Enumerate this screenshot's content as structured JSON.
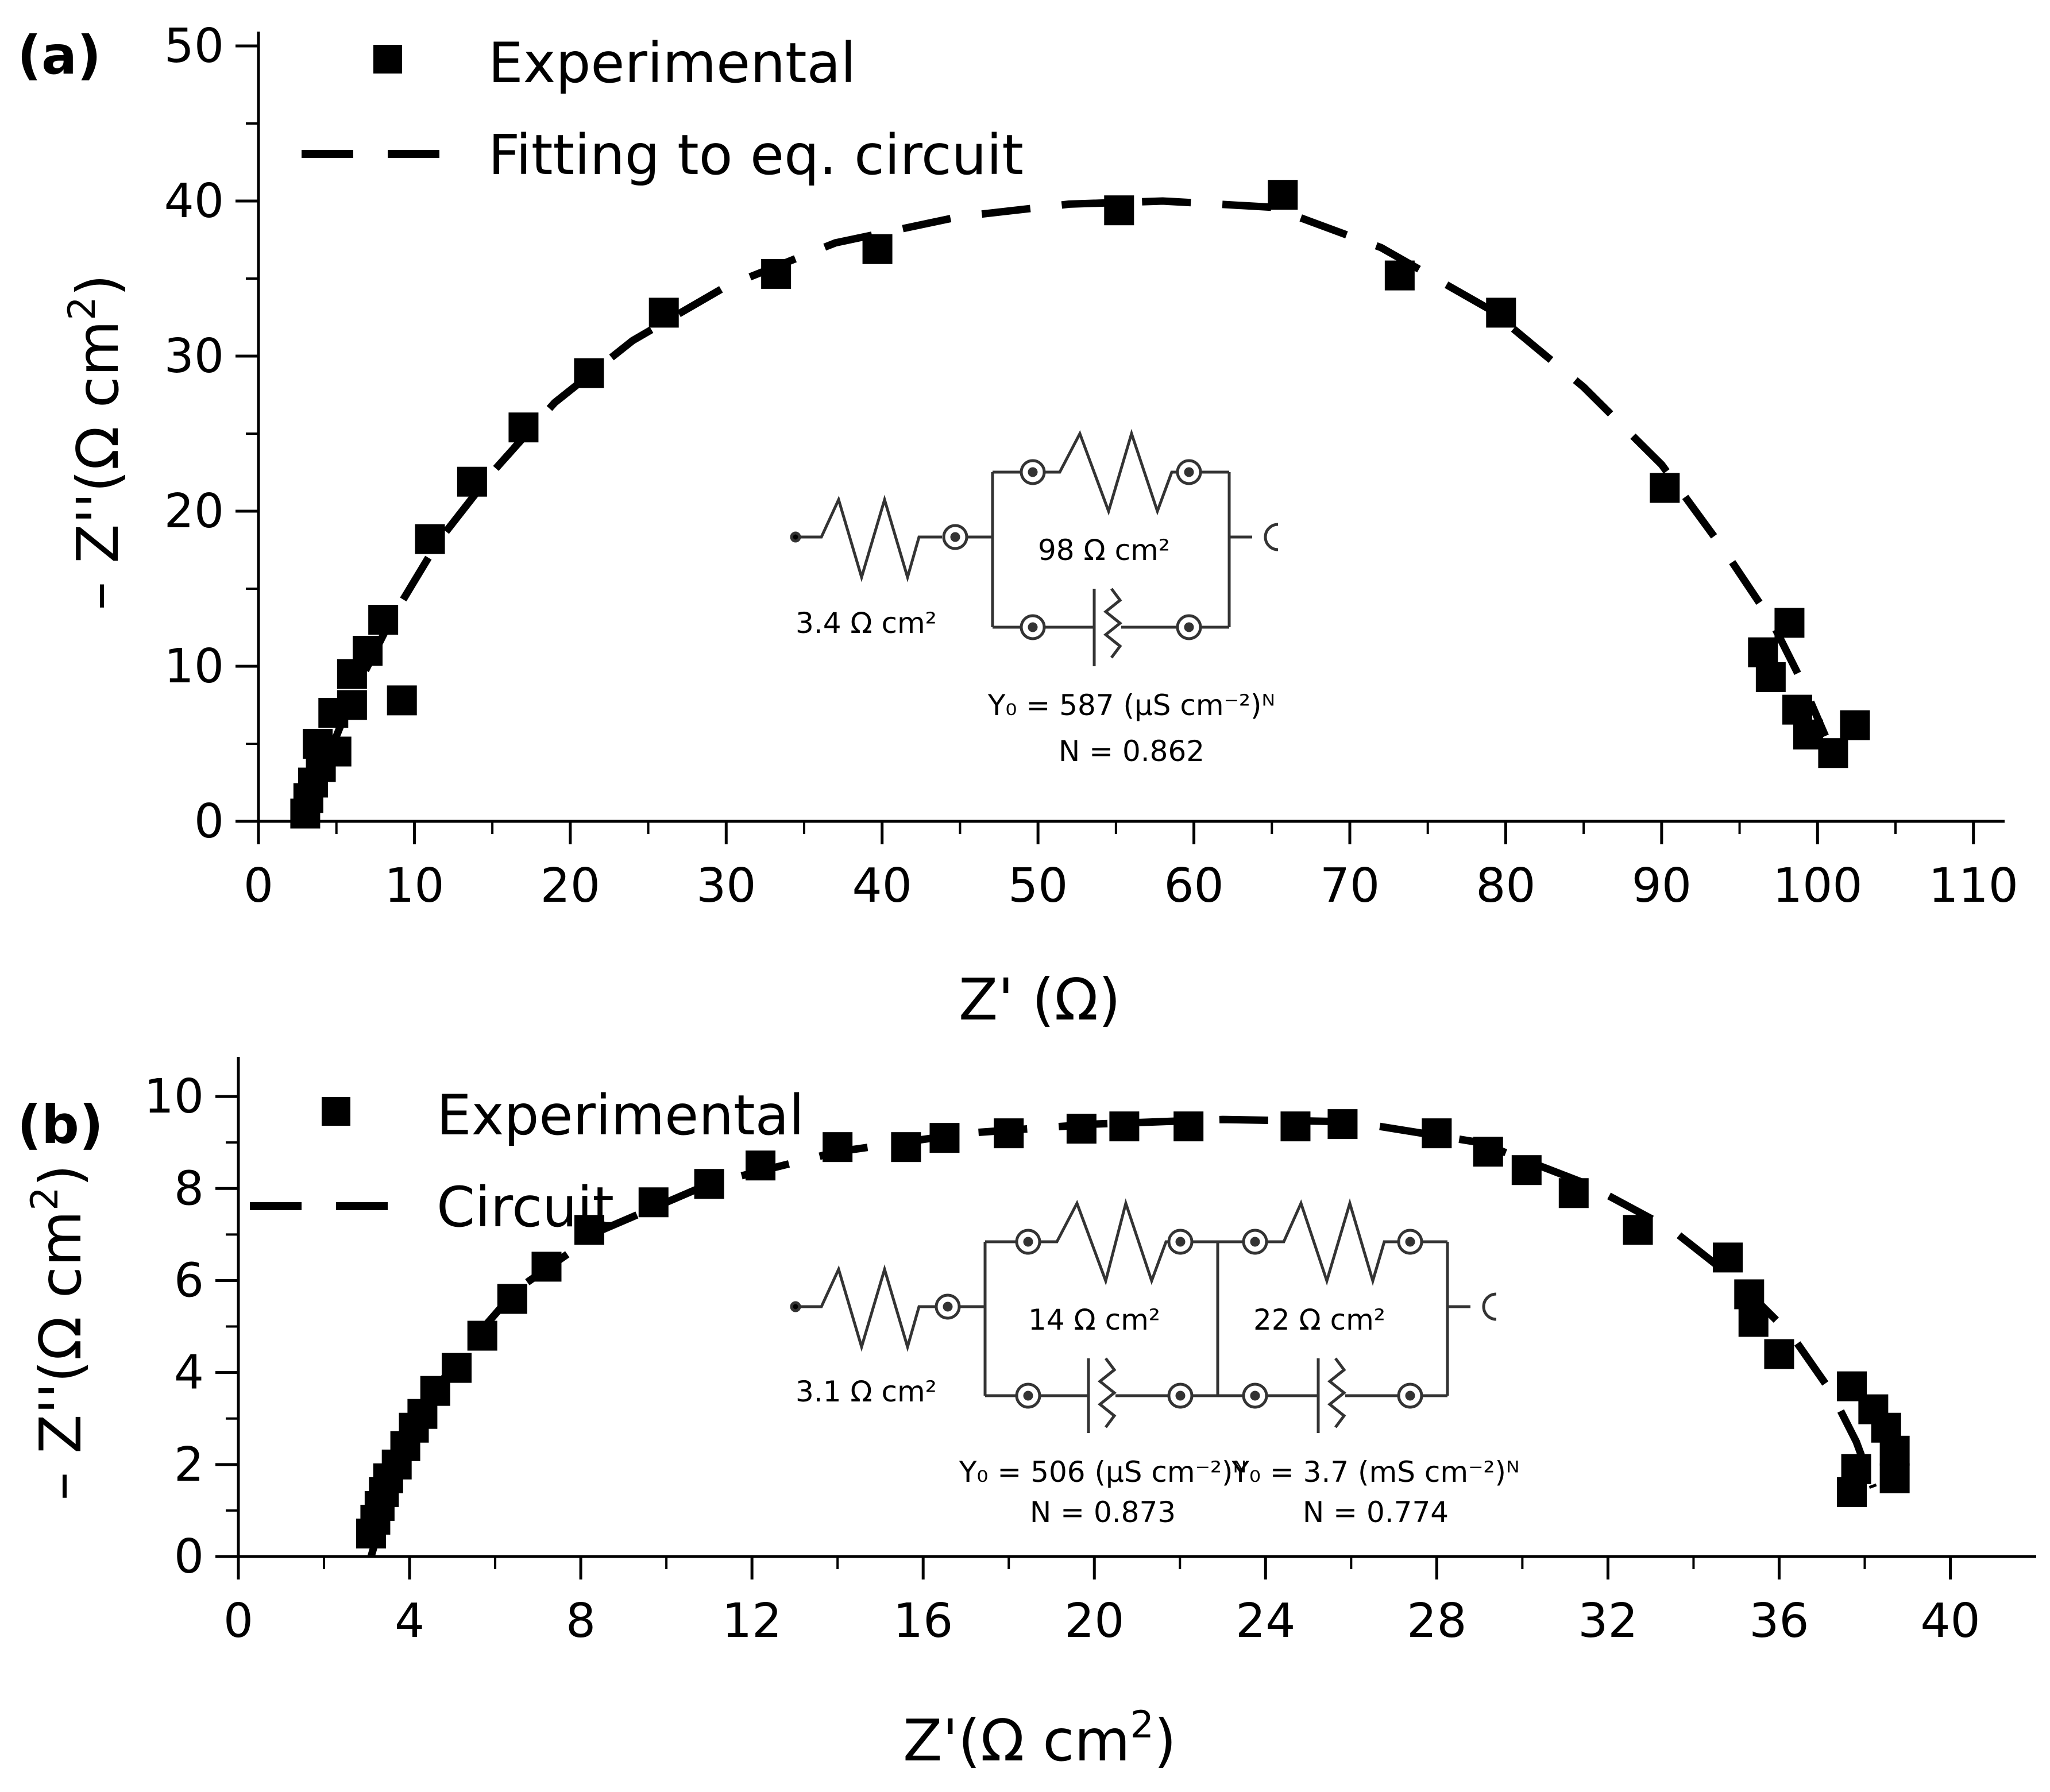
{
  "colors": {
    "background": "#ffffff",
    "ink": "#000000"
  },
  "chart_data": [
    {
      "panel_label": "(a)",
      "type": "scatter",
      "xlim": [
        0,
        112
      ],
      "ylim": [
        0,
        50
      ],
      "xticks": [
        0,
        10,
        20,
        30,
        40,
        50,
        60,
        70,
        80,
        90,
        100,
        110
      ],
      "yticks": [
        0,
        10,
        20,
        30,
        40,
        50
      ],
      "x_minor": 5,
      "y_minor": 5,
      "xlabel": {
        "main": "Z' (",
        "omega": "Ω",
        "end": ")"
      },
      "ylabel": {
        "main": "– Z''(",
        "omega": "Ω",
        "unit": " cm",
        "sup": "2",
        "end": ")"
      },
      "legend": [
        {
          "label": "Experimental",
          "marker": "square"
        },
        {
          "label": "Fitting to eq. circuit",
          "marker": "dashed-line"
        }
      ],
      "series": [
        {
          "name": "Experimental",
          "points": [
            [
              3.0,
              0.5
            ],
            [
              3.2,
              1.5
            ],
            [
              3.5,
              2.5
            ],
            [
              4.0,
              3.5
            ],
            [
              3.8,
              5.0
            ],
            [
              5.0,
              4.5
            ],
            [
              4.8,
              7.0
            ],
            [
              6.0,
              7.5
            ],
            [
              6.0,
              9.5
            ],
            [
              7.0,
              11.0
            ],
            [
              8.0,
              13.0
            ],
            [
              9.2,
              7.8
            ],
            [
              11.0,
              18.2
            ],
            [
              13.7,
              21.9
            ],
            [
              17.0,
              25.4
            ],
            [
              21.2,
              28.9
            ],
            [
              26.0,
              32.8
            ],
            [
              33.2,
              35.3
            ],
            [
              39.7,
              36.9
            ],
            [
              55.2,
              39.4
            ],
            [
              65.7,
              40.4
            ],
            [
              73.2,
              35.2
            ],
            [
              79.7,
              32.8
            ],
            [
              90.2,
              21.5
            ],
            [
              96.5,
              10.9
            ],
            [
              97.0,
              9.3
            ],
            [
              98.2,
              12.8
            ],
            [
              98.7,
              7.2
            ],
            [
              99.4,
              5.6
            ],
            [
              101.0,
              4.4
            ],
            [
              102.4,
              6.2
            ]
          ]
        },
        {
          "name": "Fitting to eq. circuit",
          "style": "dashed",
          "points": [
            [
              3.4,
              0.0
            ],
            [
              4.4,
              4.0
            ],
            [
              6.0,
              8.0
            ],
            [
              8.5,
              13.0
            ],
            [
              11.5,
              18.0
            ],
            [
              15.0,
              22.5
            ],
            [
              19.0,
              27.0
            ],
            [
              24.0,
              31.0
            ],
            [
              30.0,
              34.5
            ],
            [
              37.0,
              37.3
            ],
            [
              45.0,
              39.0
            ],
            [
              52.0,
              39.8
            ],
            [
              58.0,
              40.0
            ],
            [
              65.0,
              39.6
            ],
            [
              72.0,
              37.0
            ],
            [
              79.0,
              33.0
            ],
            [
              85.0,
              28.0
            ],
            [
              90.0,
              23.0
            ],
            [
              94.0,
              17.5
            ],
            [
              97.0,
              13.0
            ],
            [
              99.0,
              9.0
            ],
            [
              100.5,
              5.5
            ]
          ]
        }
      ],
      "circuit": {
        "r_series": "3.4 Ω cm²",
        "r_parallel": "98 Ω cm²",
        "cpe_y0": "Y₀ = 587 (μS cm⁻²)ᴺ",
        "cpe_n": "N = 0.862"
      }
    },
    {
      "panel_label": "(b)",
      "type": "scatter",
      "xlim": [
        0,
        41
      ],
      "ylim": [
        0,
        10.8
      ],
      "xticks": [
        0,
        4,
        8,
        12,
        16,
        20,
        24,
        28,
        32,
        36,
        40
      ],
      "yticks": [
        0,
        2,
        4,
        6,
        8,
        10
      ],
      "x_minor": 2,
      "y_minor": 1,
      "xlabel": {
        "main": "Z'(",
        "omega": "Ω",
        "unit": " cm",
        "sup": "2",
        "end": ")"
      },
      "ylabel": {
        "main": "– Z''(",
        "omega": "Ω",
        "unit": " cm",
        "sup": "2",
        "end": ")"
      },
      "legend": [
        {
          "label": "Experimental",
          "marker": "square"
        },
        {
          "label": "Circuit",
          "marker": "dashed-line"
        }
      ],
      "series": [
        {
          "name": "Experimental",
          "points": [
            [
              3.1,
              0.5
            ],
            [
              3.2,
              0.8
            ],
            [
              3.3,
              1.1
            ],
            [
              3.4,
              1.4
            ],
            [
              3.5,
              1.7
            ],
            [
              3.7,
              2.0
            ],
            [
              3.9,
              2.4
            ],
            [
              4.1,
              2.8
            ],
            [
              4.3,
              3.1
            ],
            [
              4.6,
              3.6
            ],
            [
              5.1,
              4.1
            ],
            [
              5.7,
              4.8
            ],
            [
              6.4,
              5.6
            ],
            [
              7.2,
              6.3
            ],
            [
              8.2,
              7.1
            ],
            [
              9.7,
              7.7
            ],
            [
              11.0,
              8.1
            ],
            [
              12.2,
              8.5
            ],
            [
              14.0,
              8.9
            ],
            [
              15.6,
              8.9
            ],
            [
              16.5,
              9.1
            ],
            [
              18.0,
              9.2
            ],
            [
              19.7,
              9.3
            ],
            [
              20.7,
              9.35
            ],
            [
              22.2,
              9.35
            ],
            [
              24.7,
              9.35
            ],
            [
              25.8,
              9.4
            ],
            [
              28.0,
              9.2
            ],
            [
              29.2,
              8.8
            ],
            [
              30.1,
              8.4
            ],
            [
              31.2,
              7.9
            ],
            [
              32.7,
              7.1
            ],
            [
              34.8,
              6.5
            ],
            [
              35.3,
              5.7
            ],
            [
              35.4,
              5.1
            ],
            [
              36.0,
              4.4
            ],
            [
              37.7,
              3.7
            ],
            [
              38.2,
              3.2
            ],
            [
              38.5,
              2.8
            ],
            [
              38.7,
              2.3
            ],
            [
              38.7,
              1.7
            ],
            [
              37.8,
              1.9
            ],
            [
              37.7,
              1.4
            ]
          ]
        },
        {
          "name": "Circuit",
          "style": "dashed",
          "points": [
            [
              3.1,
              0.0
            ],
            [
              3.8,
              2.2
            ],
            [
              5.0,
              4.2
            ],
            [
              6.5,
              5.8
            ],
            [
              8.5,
              7.1
            ],
            [
              11.0,
              8.1
            ],
            [
              14.0,
              8.8
            ],
            [
              17.0,
              9.2
            ],
            [
              20.0,
              9.4
            ],
            [
              23.0,
              9.5
            ],
            [
              26.0,
              9.45
            ],
            [
              29.0,
              9.0
            ],
            [
              31.5,
              8.1
            ],
            [
              33.5,
              7.1
            ],
            [
              35.0,
              6.0
            ],
            [
              36.3,
              4.8
            ],
            [
              37.2,
              3.6
            ],
            [
              37.8,
              2.5
            ],
            [
              38.2,
              1.5
            ]
          ]
        }
      ],
      "circuit": {
        "r_series": "3.1 Ω cm²",
        "r1": "14 Ω cm²",
        "r2": "22 Ω cm²",
        "cpe1_y0": "Y₀ = 506 (μS cm⁻²)ᴺ",
        "cpe1_n": "N = 0.873",
        "cpe2_y0": "Y₀ = 3.7 (mS cm⁻²)ᴺ",
        "cpe2_n": "N = 0.774"
      }
    }
  ]
}
